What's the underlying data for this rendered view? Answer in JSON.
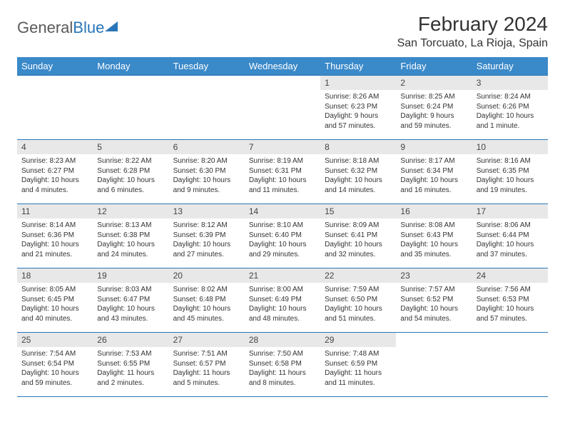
{
  "logo": {
    "text_gray": "General",
    "text_blue": "Blue"
  },
  "header": {
    "month_year": "February 2024",
    "location": "San Torcuato, La Rioja, Spain"
  },
  "colors": {
    "header_bg": "#3a89c9",
    "border": "#2876b8",
    "day_number_bg": "#e8e8e8",
    "text": "#333333"
  },
  "days_of_week": [
    "Sunday",
    "Monday",
    "Tuesday",
    "Wednesday",
    "Thursday",
    "Friday",
    "Saturday"
  ],
  "weeks": [
    [
      null,
      null,
      null,
      null,
      {
        "n": "1",
        "sunrise": "Sunrise: 8:26 AM",
        "sunset": "Sunset: 6:23 PM",
        "daylight": "Daylight: 9 hours and 57 minutes."
      },
      {
        "n": "2",
        "sunrise": "Sunrise: 8:25 AM",
        "sunset": "Sunset: 6:24 PM",
        "daylight": "Daylight: 9 hours and 59 minutes."
      },
      {
        "n": "3",
        "sunrise": "Sunrise: 8:24 AM",
        "sunset": "Sunset: 6:26 PM",
        "daylight": "Daylight: 10 hours and 1 minute."
      }
    ],
    [
      {
        "n": "4",
        "sunrise": "Sunrise: 8:23 AM",
        "sunset": "Sunset: 6:27 PM",
        "daylight": "Daylight: 10 hours and 4 minutes."
      },
      {
        "n": "5",
        "sunrise": "Sunrise: 8:22 AM",
        "sunset": "Sunset: 6:28 PM",
        "daylight": "Daylight: 10 hours and 6 minutes."
      },
      {
        "n": "6",
        "sunrise": "Sunrise: 8:20 AM",
        "sunset": "Sunset: 6:30 PM",
        "daylight": "Daylight: 10 hours and 9 minutes."
      },
      {
        "n": "7",
        "sunrise": "Sunrise: 8:19 AM",
        "sunset": "Sunset: 6:31 PM",
        "daylight": "Daylight: 10 hours and 11 minutes."
      },
      {
        "n": "8",
        "sunrise": "Sunrise: 8:18 AM",
        "sunset": "Sunset: 6:32 PM",
        "daylight": "Daylight: 10 hours and 14 minutes."
      },
      {
        "n": "9",
        "sunrise": "Sunrise: 8:17 AM",
        "sunset": "Sunset: 6:34 PM",
        "daylight": "Daylight: 10 hours and 16 minutes."
      },
      {
        "n": "10",
        "sunrise": "Sunrise: 8:16 AM",
        "sunset": "Sunset: 6:35 PM",
        "daylight": "Daylight: 10 hours and 19 minutes."
      }
    ],
    [
      {
        "n": "11",
        "sunrise": "Sunrise: 8:14 AM",
        "sunset": "Sunset: 6:36 PM",
        "daylight": "Daylight: 10 hours and 21 minutes."
      },
      {
        "n": "12",
        "sunrise": "Sunrise: 8:13 AM",
        "sunset": "Sunset: 6:38 PM",
        "daylight": "Daylight: 10 hours and 24 minutes."
      },
      {
        "n": "13",
        "sunrise": "Sunrise: 8:12 AM",
        "sunset": "Sunset: 6:39 PM",
        "daylight": "Daylight: 10 hours and 27 minutes."
      },
      {
        "n": "14",
        "sunrise": "Sunrise: 8:10 AM",
        "sunset": "Sunset: 6:40 PM",
        "daylight": "Daylight: 10 hours and 29 minutes."
      },
      {
        "n": "15",
        "sunrise": "Sunrise: 8:09 AM",
        "sunset": "Sunset: 6:41 PM",
        "daylight": "Daylight: 10 hours and 32 minutes."
      },
      {
        "n": "16",
        "sunrise": "Sunrise: 8:08 AM",
        "sunset": "Sunset: 6:43 PM",
        "daylight": "Daylight: 10 hours and 35 minutes."
      },
      {
        "n": "17",
        "sunrise": "Sunrise: 8:06 AM",
        "sunset": "Sunset: 6:44 PM",
        "daylight": "Daylight: 10 hours and 37 minutes."
      }
    ],
    [
      {
        "n": "18",
        "sunrise": "Sunrise: 8:05 AM",
        "sunset": "Sunset: 6:45 PM",
        "daylight": "Daylight: 10 hours and 40 minutes."
      },
      {
        "n": "19",
        "sunrise": "Sunrise: 8:03 AM",
        "sunset": "Sunset: 6:47 PM",
        "daylight": "Daylight: 10 hours and 43 minutes."
      },
      {
        "n": "20",
        "sunrise": "Sunrise: 8:02 AM",
        "sunset": "Sunset: 6:48 PM",
        "daylight": "Daylight: 10 hours and 45 minutes."
      },
      {
        "n": "21",
        "sunrise": "Sunrise: 8:00 AM",
        "sunset": "Sunset: 6:49 PM",
        "daylight": "Daylight: 10 hours and 48 minutes."
      },
      {
        "n": "22",
        "sunrise": "Sunrise: 7:59 AM",
        "sunset": "Sunset: 6:50 PM",
        "daylight": "Daylight: 10 hours and 51 minutes."
      },
      {
        "n": "23",
        "sunrise": "Sunrise: 7:57 AM",
        "sunset": "Sunset: 6:52 PM",
        "daylight": "Daylight: 10 hours and 54 minutes."
      },
      {
        "n": "24",
        "sunrise": "Sunrise: 7:56 AM",
        "sunset": "Sunset: 6:53 PM",
        "daylight": "Daylight: 10 hours and 57 minutes."
      }
    ],
    [
      {
        "n": "25",
        "sunrise": "Sunrise: 7:54 AM",
        "sunset": "Sunset: 6:54 PM",
        "daylight": "Daylight: 10 hours and 59 minutes."
      },
      {
        "n": "26",
        "sunrise": "Sunrise: 7:53 AM",
        "sunset": "Sunset: 6:55 PM",
        "daylight": "Daylight: 11 hours and 2 minutes."
      },
      {
        "n": "27",
        "sunrise": "Sunrise: 7:51 AM",
        "sunset": "Sunset: 6:57 PM",
        "daylight": "Daylight: 11 hours and 5 minutes."
      },
      {
        "n": "28",
        "sunrise": "Sunrise: 7:50 AM",
        "sunset": "Sunset: 6:58 PM",
        "daylight": "Daylight: 11 hours and 8 minutes."
      },
      {
        "n": "29",
        "sunrise": "Sunrise: 7:48 AM",
        "sunset": "Sunset: 6:59 PM",
        "daylight": "Daylight: 11 hours and 11 minutes."
      },
      null,
      null
    ]
  ]
}
